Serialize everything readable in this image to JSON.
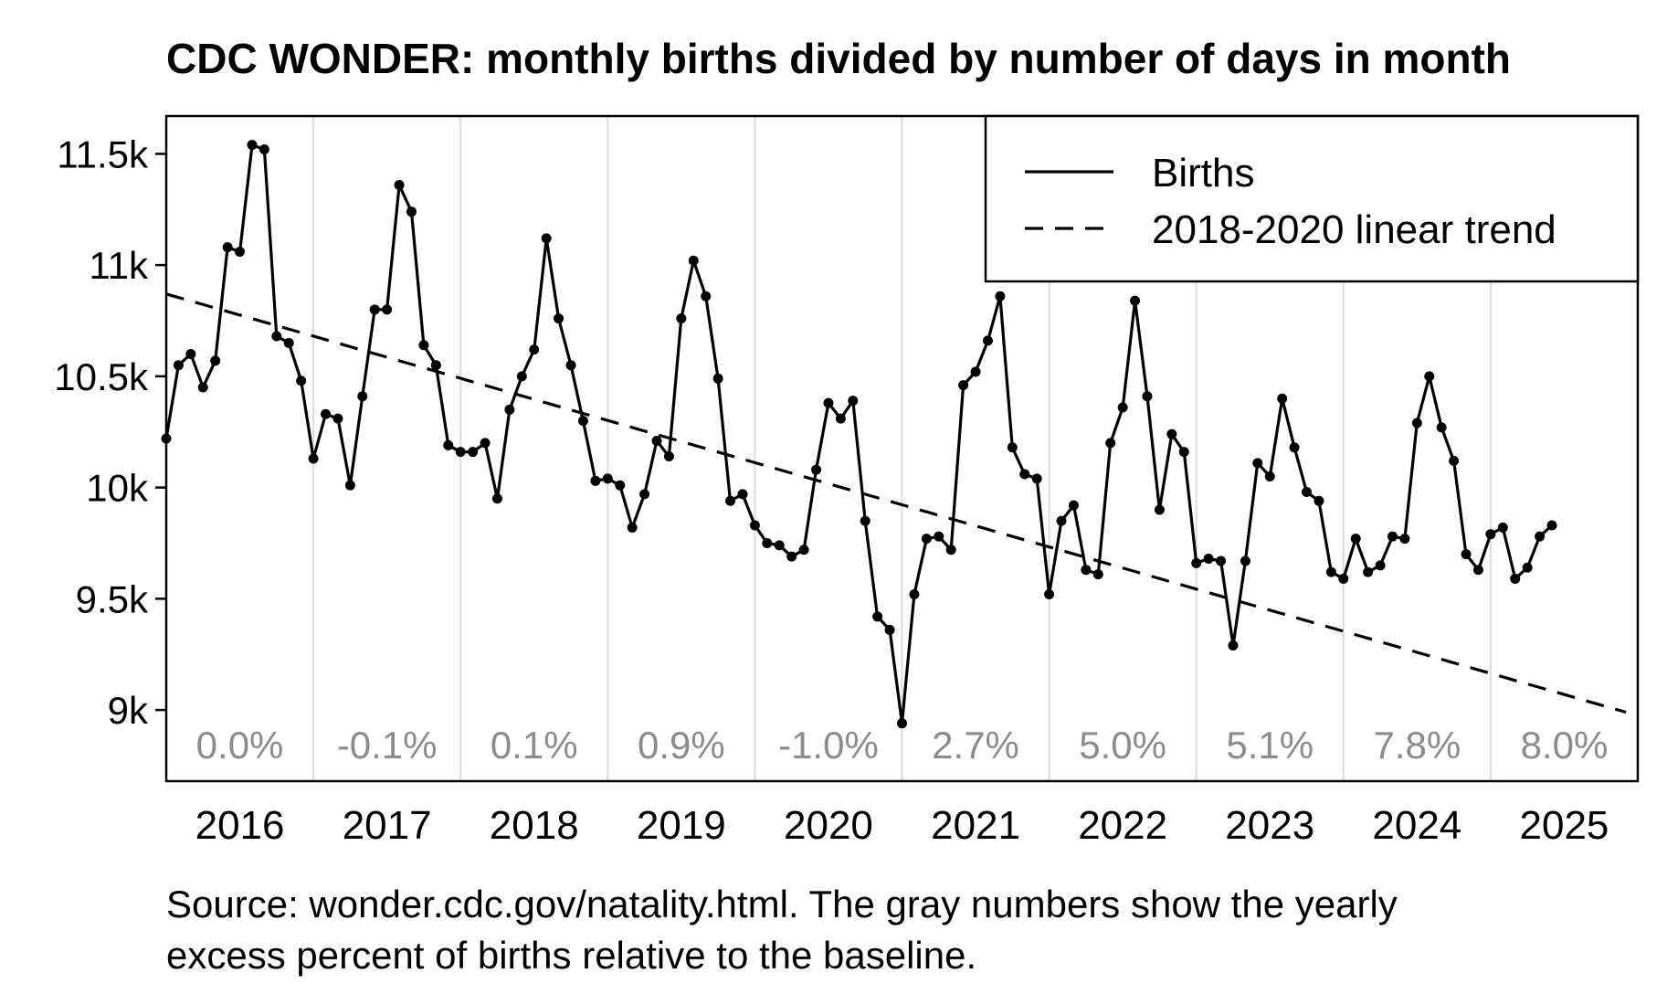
{
  "chart_data": {
    "type": "line",
    "title": "CDC WONDER: monthly births divided by number of days in month",
    "xlabel": "",
    "ylabel": "",
    "xlim": [
      2016.0,
      2026.0
    ],
    "ylim": [
      8680,
      11670
    ],
    "y_ticks": [
      {
        "value": 9000,
        "label": "9k"
      },
      {
        "value": 9500,
        "label": "9.5k"
      },
      {
        "value": 10000,
        "label": "10k"
      },
      {
        "value": 10500,
        "label": "10.5k"
      },
      {
        "value": 11000,
        "label": "11k"
      },
      {
        "value": 11500,
        "label": "11.5k"
      }
    ],
    "x_tick_labels": [
      "2016",
      "2017",
      "2018",
      "2019",
      "2020",
      "2021",
      "2022",
      "2023",
      "2024",
      "2025"
    ],
    "grid": "vertical lines at year boundaries",
    "legend": {
      "placement": "top-right",
      "entries": [
        {
          "label": "Births",
          "style": "solid"
        },
        {
          "label": "2018-2020 linear trend",
          "style": "dashed"
        }
      ]
    },
    "series": [
      {
        "name": "Births",
        "start": "2016-01",
        "values": [
          10220,
          10550,
          10600,
          10450,
          10570,
          11080,
          11060,
          11540,
          11520,
          10680,
          10650,
          10480,
          10130,
          10330,
          10310,
          10010,
          10410,
          10800,
          10800,
          11360,
          11240,
          10640,
          10550,
          10190,
          10160,
          10160,
          10200,
          9950,
          10350,
          10500,
          10620,
          11120,
          10760,
          10550,
          10300,
          10030,
          10040,
          10010,
          9820,
          9970,
          10210,
          10140,
          10760,
          11020,
          10860,
          10490,
          9940,
          9970,
          9830,
          9750,
          9740,
          9690,
          9720,
          10080,
          10380,
          10310,
          10390,
          9850,
          9420,
          9360,
          8940,
          9520,
          9770,
          9780,
          9720,
          10460,
          10520,
          10660,
          10860,
          10180,
          10060,
          10040,
          9520,
          9850,
          9920,
          9630,
          9610,
          10200,
          10360,
          10840,
          10410,
          9900,
          10240,
          10160,
          9660,
          9680,
          9670,
          9290,
          9670,
          10110,
          10050,
          10400,
          10180,
          9980,
          9940,
          9620,
          9590,
          9770,
          9620,
          9650,
          9780,
          9770,
          10290,
          10500,
          10270,
          10120,
          9700,
          9630,
          9790,
          9820,
          9590,
          9640,
          9780,
          9830
        ]
      },
      {
        "name": "2018-2020 linear trend",
        "x_start": 2016.0,
        "y_start": 10870,
        "x_end": 2025.92,
        "y_end": 8990
      }
    ],
    "annotations": {
      "yearly_excess": [
        "0.0%",
        "-0.1%",
        "0.1%",
        "0.9%",
        "-1.0%",
        "2.7%",
        "5.0%",
        "5.1%",
        "7.8%",
        "8.0%"
      ]
    },
    "caption": [
      "Source: wonder.cdc.gov/natality.html. The gray numbers show the yearly",
      "excess percent of births relative to the baseline."
    ]
  }
}
